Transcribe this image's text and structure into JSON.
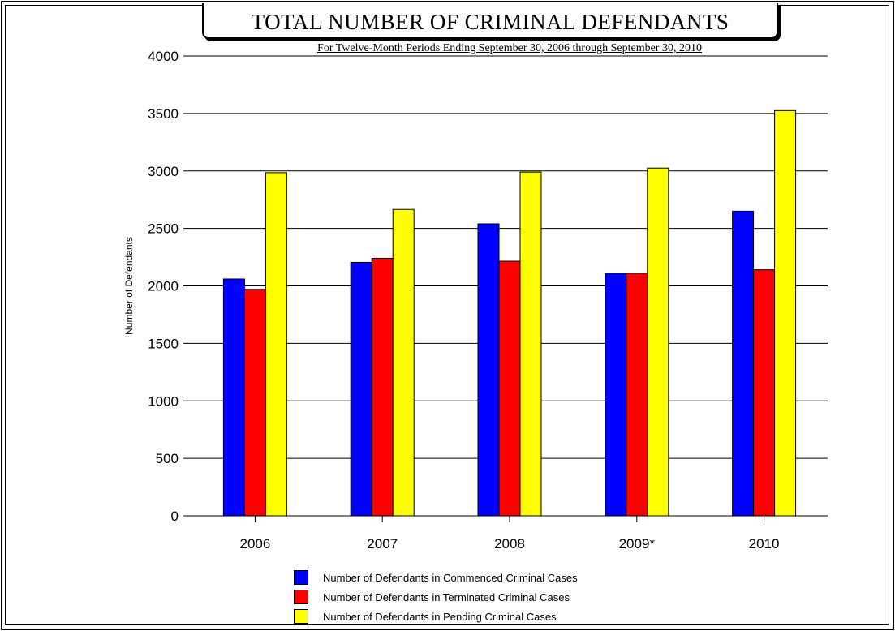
{
  "chart_data": {
    "type": "bar",
    "title": "TOTAL NUMBER OF CRIMINAL DEFENDANTS",
    "subtitle": "For Twelve-Month Periods Ending September 30, 2006 through September 30, 2010",
    "xlabel": "",
    "ylabel": "Number of Defendants",
    "ylim": [
      0,
      4000
    ],
    "yticks": [
      0,
      500,
      1000,
      1500,
      2000,
      2500,
      3000,
      3500,
      4000
    ],
    "grid": true,
    "legend_position": "bottom",
    "categories": [
      "2006",
      "2007",
      "2008",
      "2009*",
      "2010"
    ],
    "series": [
      {
        "name": "Number of Defendants in Commenced Criminal Cases",
        "color": "#0000ff",
        "values": [
          2060,
          2205,
          2540,
          2110,
          2650
        ]
      },
      {
        "name": "Number of Defendants in Terminated Criminal Cases",
        "color": "#ff0000",
        "values": [
          1970,
          2240,
          2215,
          2110,
          2140
        ]
      },
      {
        "name": "Number of Defendants in Pending Criminal Cases",
        "color": "#ffff00",
        "values": [
          2985,
          2665,
          2990,
          3025,
          3525
        ]
      }
    ]
  }
}
